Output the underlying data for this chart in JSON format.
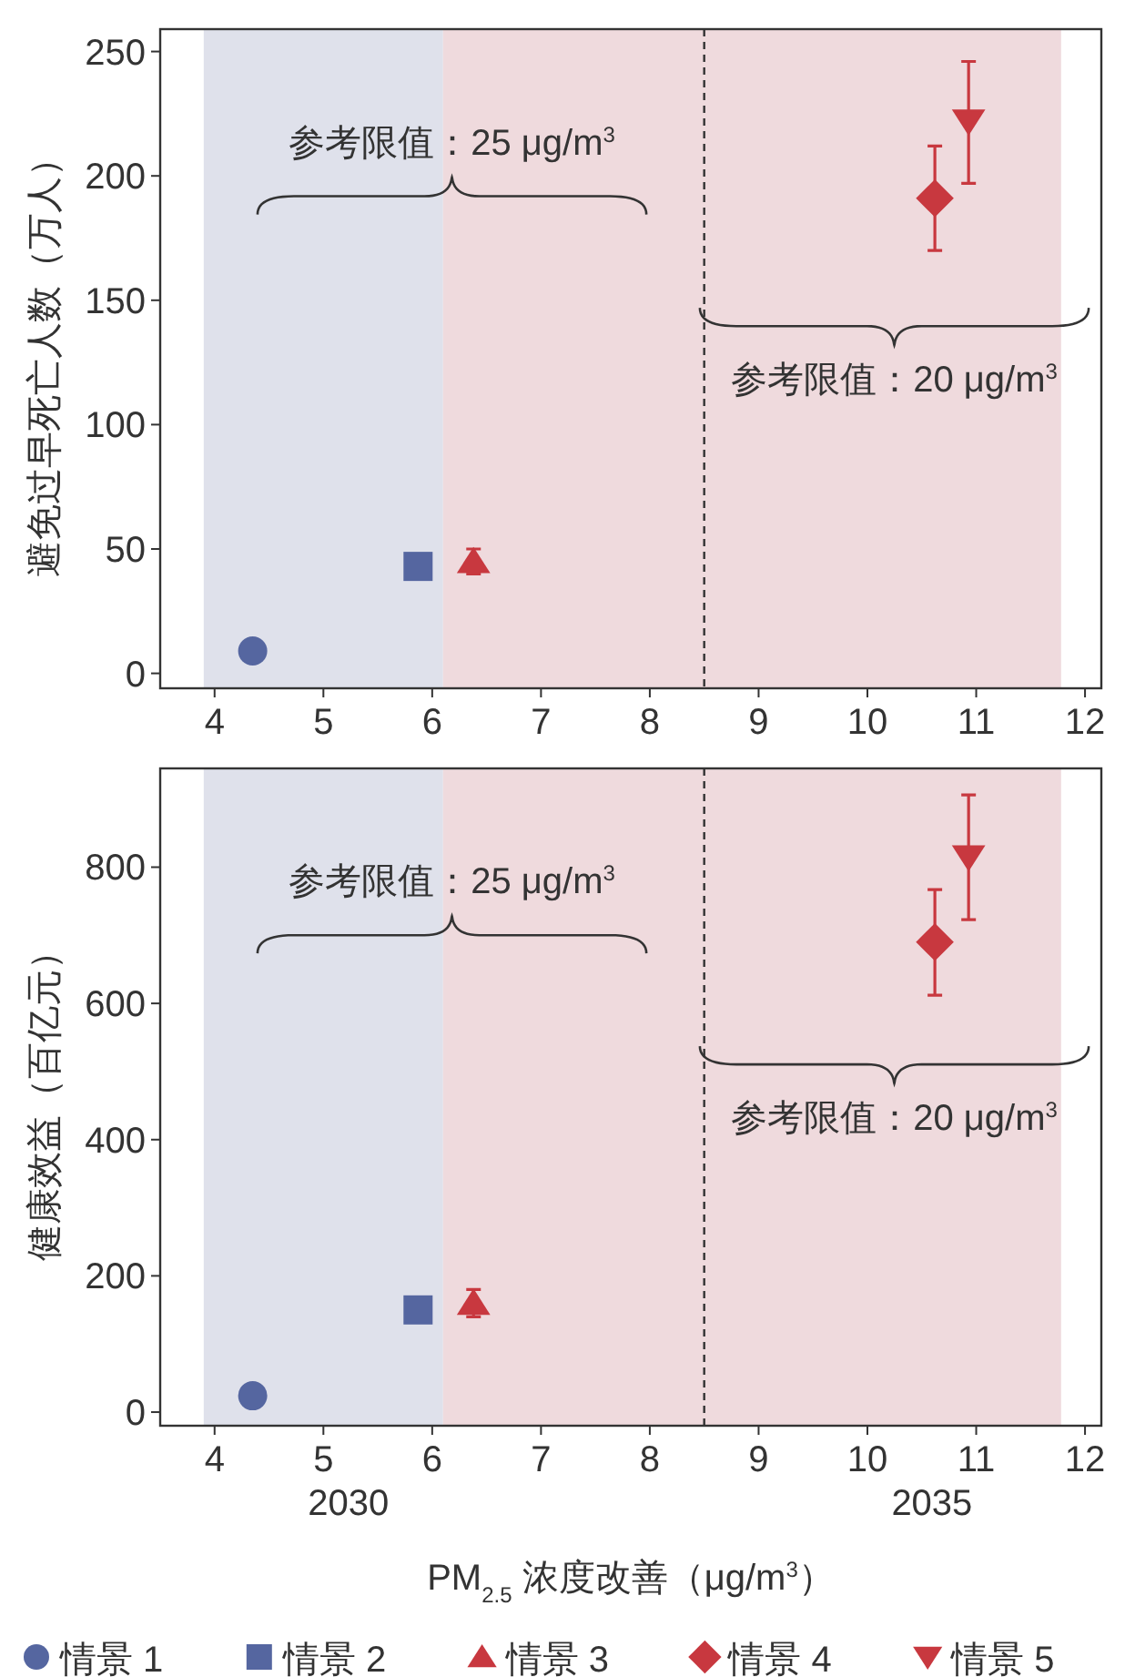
{
  "chart_data": [
    {
      "type": "scatter",
      "ylabel": "避免过早死亡人数（万人）",
      "xlim": [
        3.5,
        12.15
      ],
      "ylim": [
        -6,
        259
      ],
      "xticks": [
        4,
        5,
        6,
        7,
        8,
        9,
        10,
        11,
        12
      ],
      "yticks": [
        0,
        50,
        100,
        150,
        200,
        250
      ],
      "grid": false,
      "series": [
        {
          "color": "#5566a0",
          "marker": "circle",
          "x": [
            4.35
          ],
          "values": [
            9
          ]
        },
        {
          "color": "#5566a0",
          "marker": "square",
          "x": [
            5.87
          ],
          "values": [
            43
          ]
        },
        {
          "color": "#c8383f",
          "marker": "triangle",
          "x": [
            6.38
          ],
          "values": [
            45
          ],
          "errors": [
            5
          ]
        },
        {
          "color": "#c8383f",
          "marker": "diamond",
          "x": [
            10.62
          ],
          "values": [
            191
          ],
          "errors": [
            [
              170,
              212
            ]
          ]
        },
        {
          "color": "#c8383f",
          "marker": "triangle-down",
          "x": [
            10.93
          ],
          "values": [
            222
          ],
          "errors": [
            [
              197,
              246
            ]
          ]
        }
      ],
      "bands": [
        {
          "axis": "x",
          "from": 3.9,
          "to": 6.1,
          "color": "#dfe1eb"
        },
        {
          "axis": "x",
          "from": 6.1,
          "to": 11.78,
          "color": "#efdadd"
        }
      ],
      "ref_lines": [
        {
          "axis": "x",
          "value": 8.5,
          "line_style": "dashed",
          "color": "#333333"
        }
      ],
      "annotations": [
        "参考限值：25 μg/m$^{3}$",
        "参考限值：20 μg/m$^{3}$"
      ]
    },
    {
      "type": "scatter",
      "ylabel": "健康效益（百亿元）",
      "xlabel": "PM$_{2.5}$ 浓度改善（μg/m$^{3}$）",
      "xlim": [
        3.5,
        12.15
      ],
      "ylim": [
        -20,
        945
      ],
      "xticks": [
        4,
        5,
        6,
        7,
        8,
        9,
        10,
        11,
        12
      ],
      "yticks": [
        0,
        200,
        400,
        600,
        800
      ],
      "grid": false,
      "legend": "bottom",
      "series": [
        {
          "name": "情景 1",
          "color": "#5566a0",
          "marker": "circle",
          "x": [
            4.35
          ],
          "values": [
            24
          ]
        },
        {
          "name": "情景 2",
          "color": "#5566a0",
          "marker": "square",
          "x": [
            5.87
          ],
          "values": [
            150
          ]
        },
        {
          "name": "情景 3",
          "color": "#c8383f",
          "marker": "triangle",
          "x": [
            6.38
          ],
          "values": [
            160
          ],
          "errors": [
            20
          ]
        },
        {
          "name": "情景 4",
          "color": "#c8383f",
          "marker": "diamond",
          "x": [
            10.62
          ],
          "values": [
            690
          ],
          "errors": [
            [
              612,
              767
            ]
          ]
        },
        {
          "name": "情景 5",
          "color": "#c8383f",
          "marker": "triangle-down",
          "x": [
            10.93
          ],
          "values": [
            815
          ],
          "errors": [
            [
              723,
              906
            ]
          ]
        }
      ],
      "bands": [
        {
          "axis": "x",
          "from": 3.9,
          "to": 6.1,
          "color": "#dfe1eb"
        },
        {
          "axis": "x",
          "from": 6.1,
          "to": 11.78,
          "color": "#efdadd"
        }
      ],
      "ref_lines": [
        {
          "axis": "x",
          "value": 8.5,
          "line_style": "dashed",
          "color": "#333333"
        }
      ],
      "annotations": [
        "参考限值：25 μg/m$^{3}$",
        "参考限值：20 μg/m$^{3}$",
        "2030",
        "2035"
      ]
    }
  ]
}
